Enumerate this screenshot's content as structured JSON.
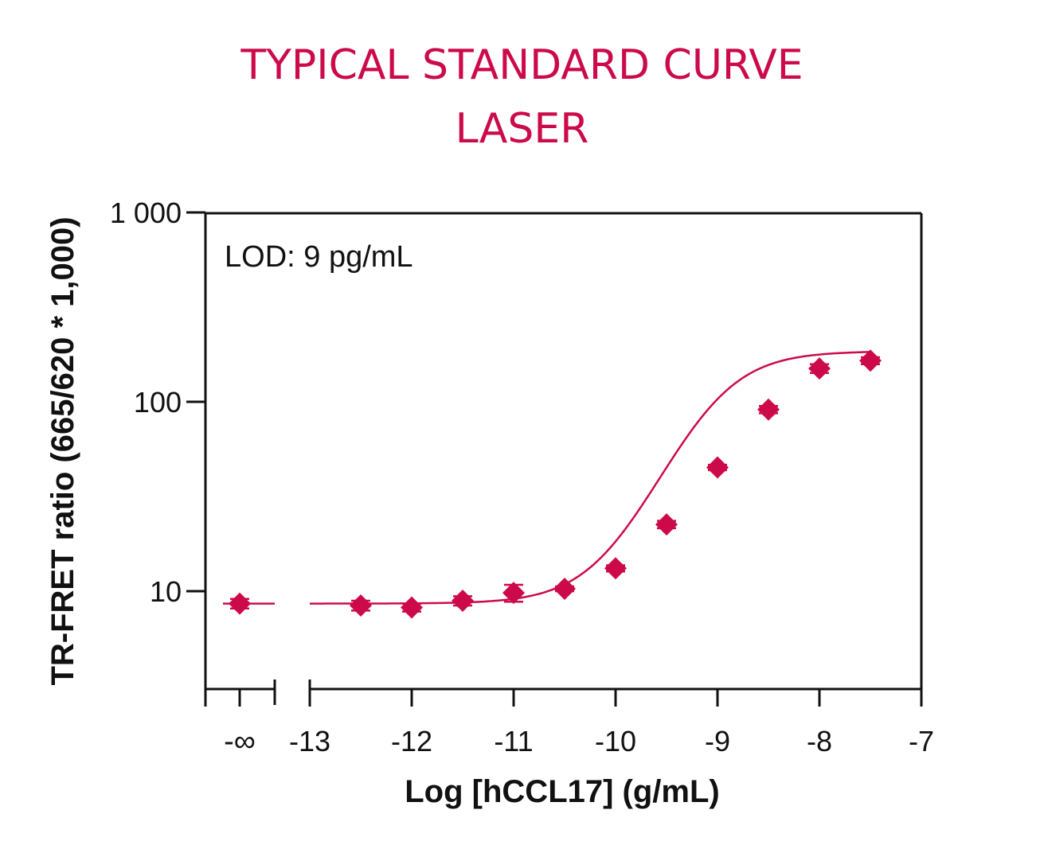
{
  "colors": {
    "accent": "#cc0a4a",
    "axis": "#111111",
    "text": "#111111"
  },
  "chart_data": {
    "type": "scatter",
    "title": "TYPICAL STANDARD CURVE",
    "subtitle": "LASER",
    "xlabel": "Log [hCCL17] (g/mL)",
    "ylabel": "TR-FRET ratio (665/620 * 1,000)",
    "annotation": "LOD: 9 pg/mL",
    "y_scale": "log",
    "ylim": [
      3.3,
      1000
    ],
    "xlim": [
      -13,
      -7
    ],
    "x_ticks": [
      -13,
      -12,
      -11,
      -10,
      -9,
      -8,
      -7
    ],
    "x_tick_labels": [
      "-13",
      "-12",
      "-11",
      "-10",
      "-9",
      "-8",
      "-7"
    ],
    "x_break_tick_label": "-∞",
    "y_ticks": [
      10,
      100,
      1000
    ],
    "y_tick_labels": [
      "10",
      "100",
      "1 000"
    ],
    "grid": false,
    "series": [
      {
        "points": [
          {
            "x": "-∞",
            "y": 8.6,
            "err": 0.5
          },
          {
            "x": -12.5,
            "y": 8.4,
            "err": 0.5
          },
          {
            "x": -12.0,
            "y": 8.2,
            "err": 0.4
          },
          {
            "x": -11.5,
            "y": 8.9,
            "err": 0.5
          },
          {
            "x": -11.0,
            "y": 9.8,
            "err": 1.0
          },
          {
            "x": -10.5,
            "y": 10.3,
            "err": 0.3
          },
          {
            "x": -10.0,
            "y": 13.2,
            "err": 0.5
          },
          {
            "x": -9.5,
            "y": 22.5,
            "err": 1.0
          },
          {
            "x": -9.0,
            "y": 45.0,
            "err": 1.5
          },
          {
            "x": -8.5,
            "y": 91.0,
            "err": 4.0
          },
          {
            "x": -8.0,
            "y": 150.0,
            "err": 8.0
          },
          {
            "x": -7.5,
            "y": 165.0,
            "err": 7.0
          }
        ],
        "fit": {
          "model": "4PL",
          "bottom": 8.6,
          "top": 185,
          "logEC50": -9.05,
          "hill": 1.3
        }
      }
    ]
  }
}
